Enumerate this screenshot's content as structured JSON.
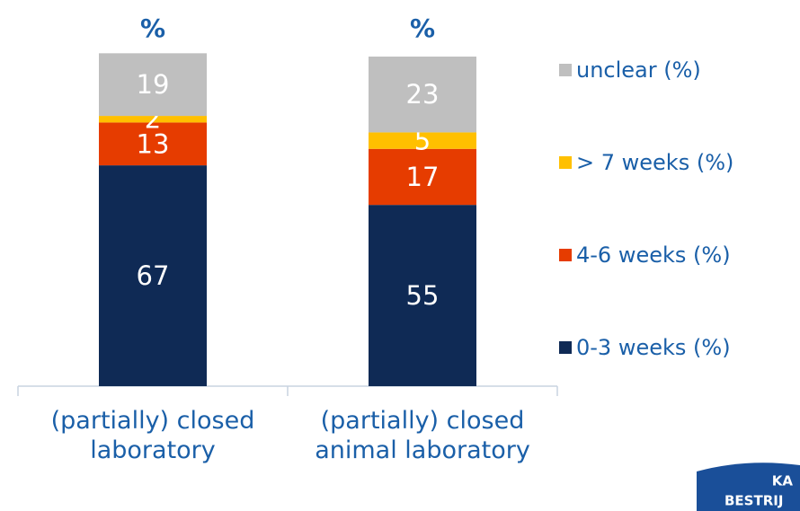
{
  "chart_data": {
    "type": "stacked_bar",
    "categories": [
      "(partially) closed laboratory",
      "(partially) closed animal laboratory"
    ],
    "annotations": [
      "%",
      "%"
    ],
    "series": [
      {
        "name": "0-3 weeks (%)",
        "color": "#0f2a55",
        "values": [
          67,
          55
        ]
      },
      {
        "name": "4-6 weeks (%)",
        "color": "#e63c00",
        "values": [
          13,
          17
        ]
      },
      {
        "name": "> 7 weeks (%)",
        "color": "#ffc000",
        "values": [
          2,
          5
        ]
      },
      {
        "name": "unclear (%)",
        "color": "#bfbfbf",
        "values": [
          19,
          23
        ]
      }
    ],
    "ylim": [
      0,
      100
    ],
    "legend": "right"
  },
  "logo": {
    "lines": [
      "KA",
      "BESTRIJ"
    ]
  }
}
